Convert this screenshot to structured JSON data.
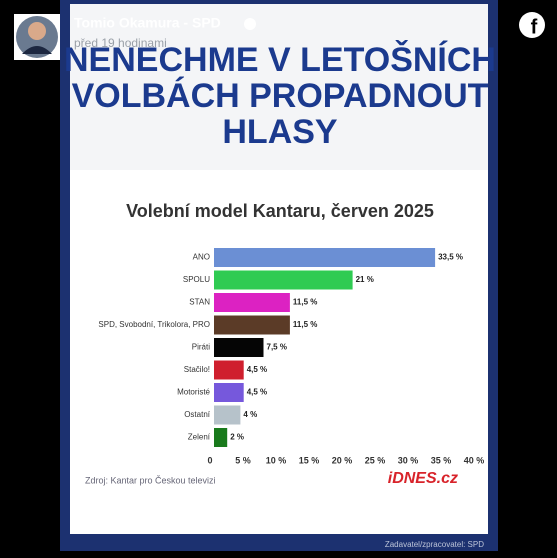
{
  "post": {
    "author": "Tomio Okamura - SPD",
    "time": "před 19 hodinami"
  },
  "headline": [
    "NENECHME V LETOŠNÍCH",
    "VOLBÁCH PROPADNOUT",
    "HLASY"
  ],
  "chart_data": {
    "type": "hbar",
    "title": "Volební model Kantaru, červen 2025",
    "categories": [
      "ANO",
      "SPOLU",
      "STAN",
      "SPD, Svobodní, Trikolora, PRO",
      "Piráti",
      "Stačilo!",
      "Motoristé",
      "Ostatní",
      "Zelení"
    ],
    "values": [
      33.5,
      21,
      11.5,
      11.5,
      7.5,
      4.5,
      4.5,
      4,
      2
    ],
    "value_labels": [
      "33,5 %",
      "21 %",
      "11,5 %",
      "11,5 %",
      "7,5 %",
      "4,5 %",
      "4,5 %",
      "4 %",
      "2 %"
    ],
    "colors": [
      "#6b8fd4",
      "#2fcb52",
      "#dc22c2",
      "#5b3b27",
      "#050505",
      "#cf1f2e",
      "#7658dc",
      "#b6c2ca",
      "#197a1c"
    ],
    "xlim": [
      0,
      40
    ],
    "xticks": [
      0,
      {
        "value": 5,
        "label": "5 %"
      },
      {
        "value": 10,
        "label": "10 %"
      },
      {
        "value": 15,
        "label": "15 %"
      },
      {
        "value": 20,
        "label": "20 %"
      },
      {
        "value": 25,
        "label": "25 %"
      },
      {
        "value": 30,
        "label": "30 %"
      },
      {
        "value": 35,
        "label": "35 %"
      },
      {
        "value": 40,
        "label": "40 %"
      }
    ],
    "source": "Zdroj: Kantar pro Českou televizi",
    "logo": "iDNES.cz"
  },
  "footer": "Zadavatel/zpracovatel: SPD"
}
